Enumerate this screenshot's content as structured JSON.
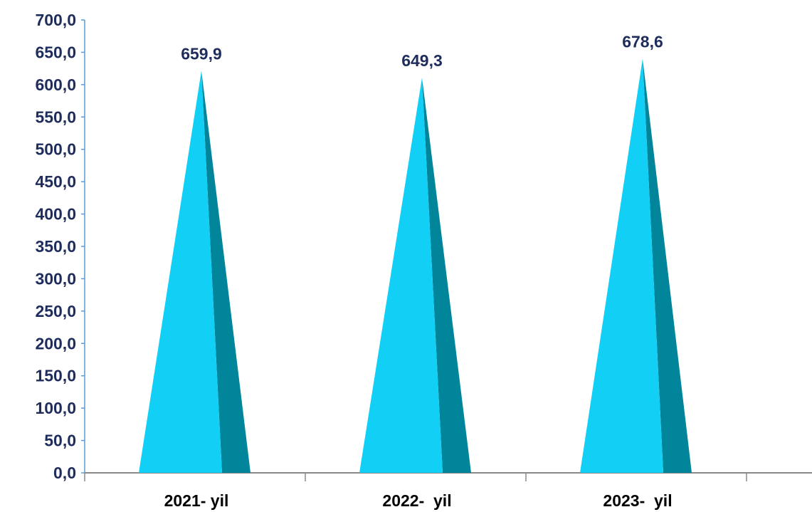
{
  "chart_data": {
    "type": "bar",
    "bar_shape": "cone",
    "categories": [
      "2021- yil",
      "2022-  yil",
      "2023-  yil"
    ],
    "values": [
      659.9,
      649.3,
      678.6
    ],
    "data_labels": [
      "659,9",
      "649,3",
      "678,6"
    ],
    "ylim": [
      0,
      700
    ],
    "ytick_step": 50,
    "ytick_labels": [
      "0,0",
      "50,0",
      "100,0",
      "150,0",
      "200,0",
      "250,0",
      "300,0",
      "350,0",
      "400,0",
      "450,0",
      "500,0",
      "550,0",
      "600,0",
      "650,0",
      "700,0"
    ],
    "title": "",
    "xlabel": "",
    "ylabel": "",
    "grid": false,
    "legend": false
  },
  "colors": {
    "cone_light": "#12CFF5",
    "cone_dark": "#00859B",
    "axis_line": "#8A8A8A",
    "y_axis_line": "#5B9BD5",
    "tick_text": "#1F2D5C",
    "category_text": "#000000",
    "label_text": "#1F2D5C"
  }
}
